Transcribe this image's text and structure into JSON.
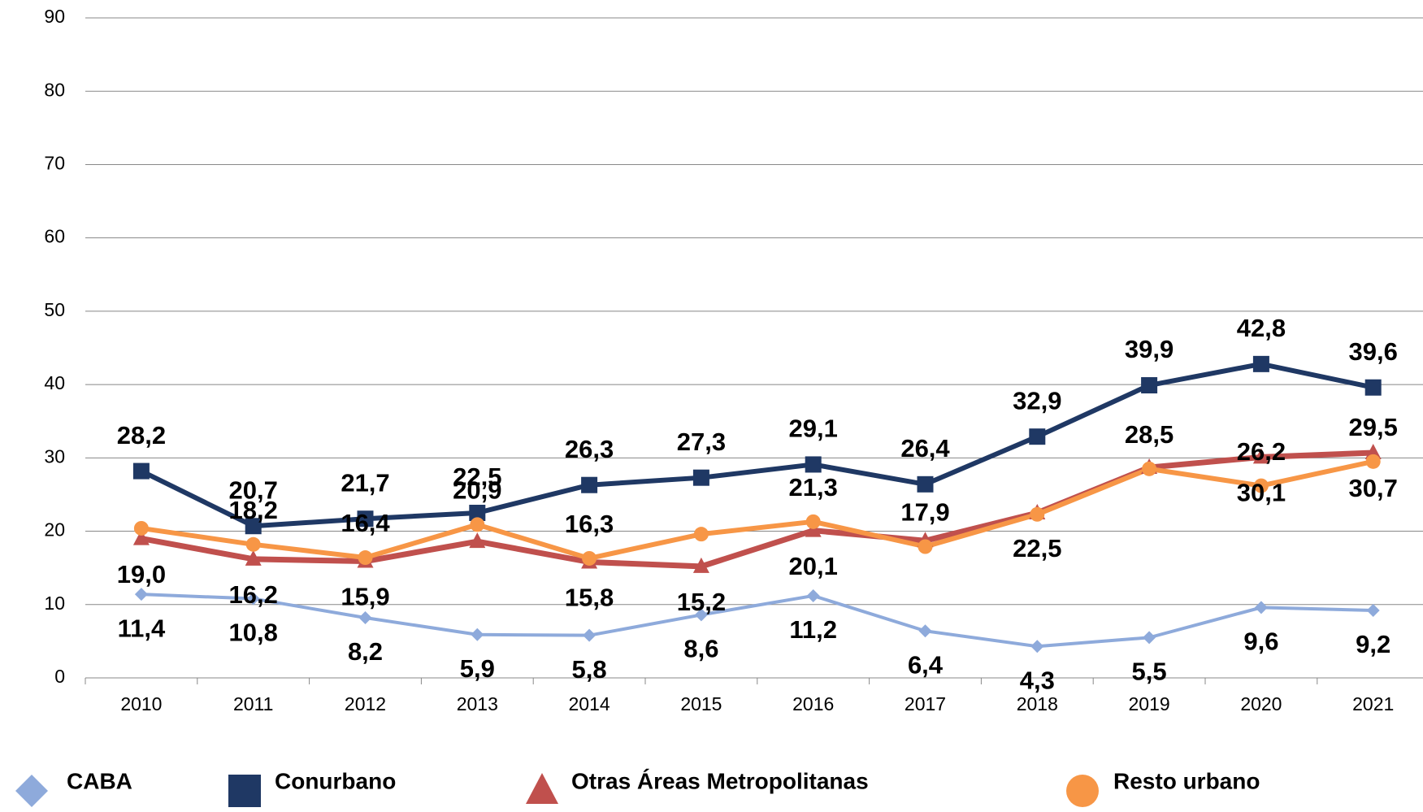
{
  "chart_data": {
    "type": "line",
    "categories": [
      "2010",
      "2011",
      "2012",
      "2013",
      "2014",
      "2015",
      "2016",
      "2017",
      "2018",
      "2019",
      "2020",
      "2021"
    ],
    "series": [
      {
        "name": "CABA",
        "color": "#8eaadb",
        "marker": "diamond",
        "values": [
          11.4,
          10.8,
          8.2,
          5.9,
          5.8,
          8.6,
          11.2,
          6.4,
          4.3,
          5.5,
          9.6,
          9.2
        ],
        "value_labels": [
          "11,4",
          "10,8",
          "8,2",
          "5,9",
          "5,8",
          "8,6",
          "11,2",
          "6,4",
          "4,3",
          "5,5",
          "9,6",
          "9,2"
        ]
      },
      {
        "name": "Conurbano",
        "color": "#1f3864",
        "marker": "square",
        "values": [
          28.2,
          20.7,
          21.7,
          22.5,
          26.3,
          27.3,
          29.1,
          26.4,
          32.9,
          39.9,
          42.8,
          39.6
        ],
        "value_labels": [
          "28,2",
          "20,7",
          "21,7",
          "22,5",
          "26,3",
          "27,3",
          "29,1",
          "26,4",
          "32,9",
          "39,9",
          "42,8",
          "39,6"
        ]
      },
      {
        "name": "Otras Áreas Metropolitanas",
        "color": "#c0504d",
        "marker": "triangle",
        "values": [
          19.0,
          16.2,
          15.9,
          18.6,
          15.8,
          15.2,
          20.1,
          18.7,
          22.5,
          28.7,
          30.1,
          30.7
        ],
        "value_labels": [
          "19,0",
          "16,2",
          "15,9",
          null,
          "15,8",
          "15,2",
          "20,1",
          null,
          "22,5",
          null,
          "30,1",
          "30,7"
        ]
      },
      {
        "name": "Resto urbano",
        "color": "#f79646",
        "marker": "circle",
        "values": [
          20.4,
          18.2,
          16.4,
          20.9,
          16.3,
          19.6,
          21.3,
          17.9,
          22.3,
          28.5,
          26.2,
          29.5
        ],
        "value_labels": [
          null,
          "18,2",
          "16,4",
          "20,9",
          "16,3",
          null,
          "21,3",
          "17,9",
          null,
          "28,5",
          "26,2",
          "29,5"
        ]
      }
    ],
    "ylim": [
      0,
      90
    ],
    "yticks": [
      0,
      10,
      20,
      30,
      40,
      50,
      60,
      70,
      80,
      90
    ],
    "grid": true,
    "legend": "bottom"
  }
}
